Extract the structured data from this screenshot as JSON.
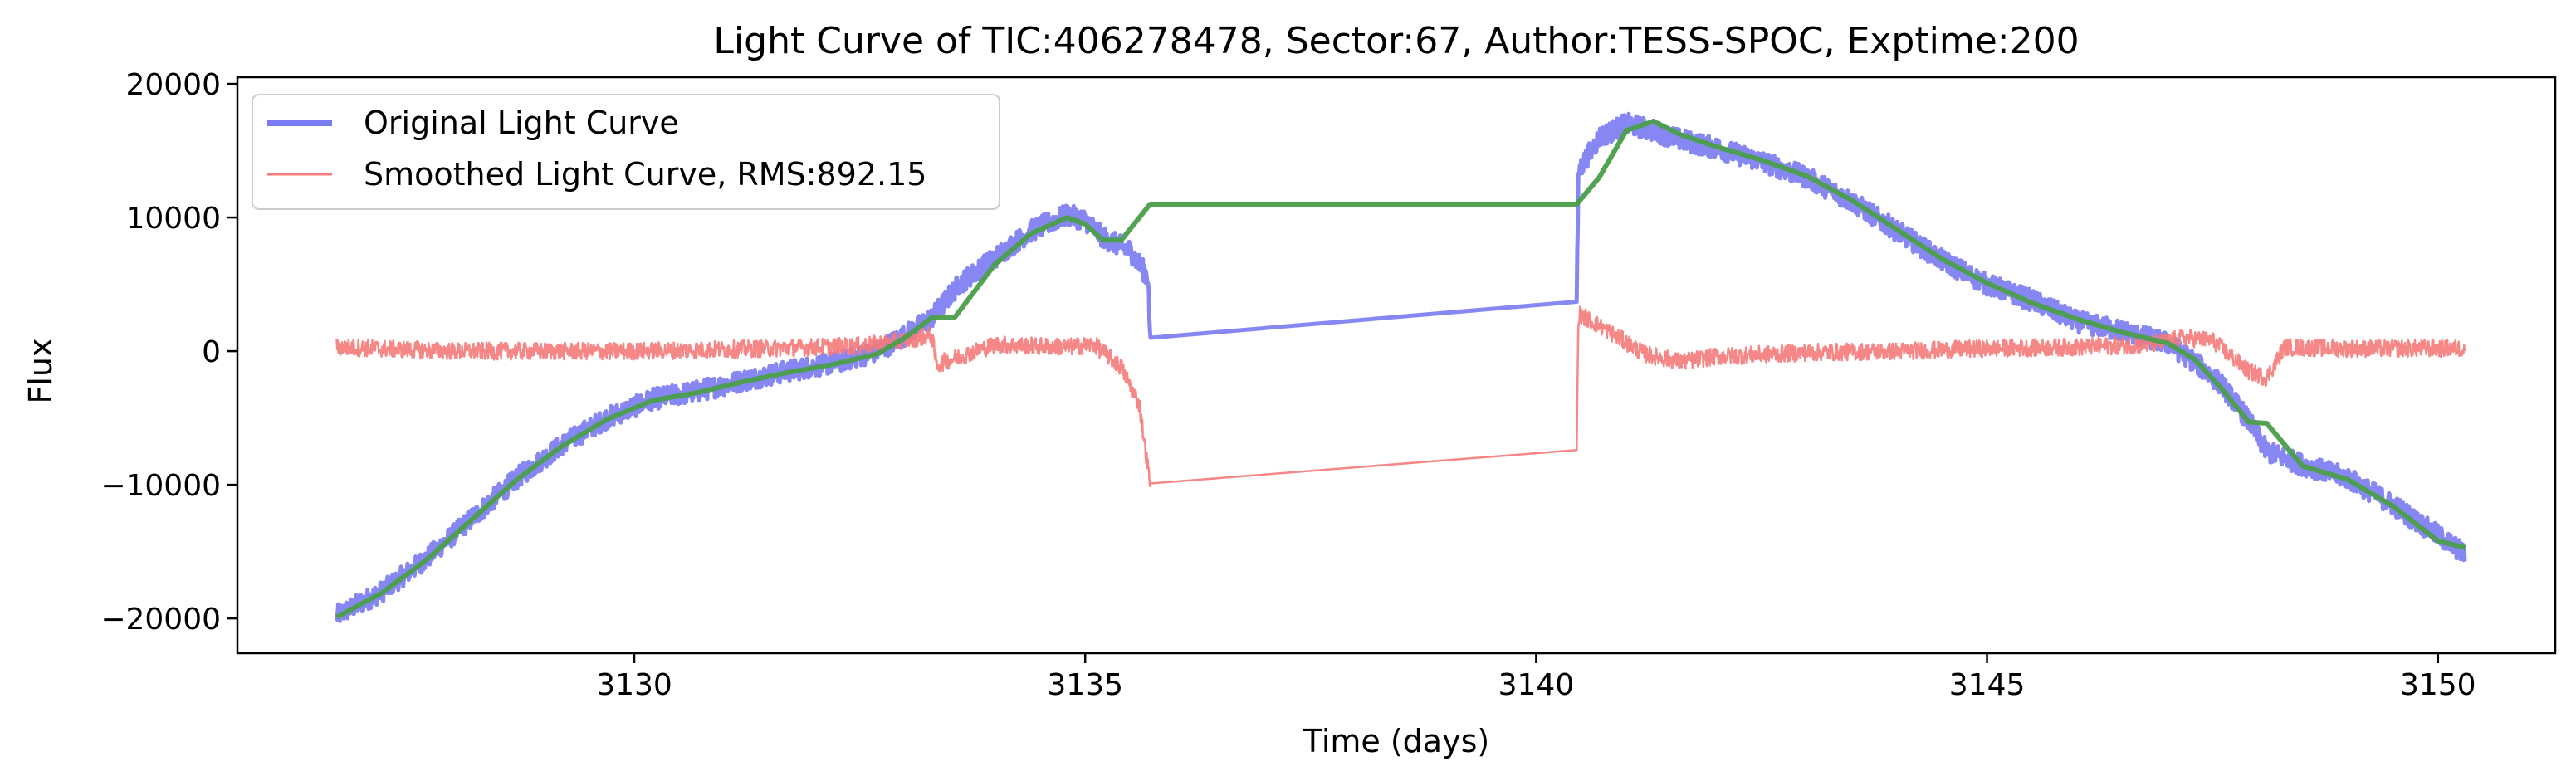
{
  "chart_data": {
    "type": "line",
    "title": "Light Curve of TIC:406278478, Sector:67, Author:TESS-SPOC, Exptime:200",
    "xlabel": "Time (days)",
    "ylabel": "Flux",
    "xlim": [
      3125.6,
      3151.3
    ],
    "ylim": [
      -22600,
      20500
    ],
    "x_ticks": [
      3130,
      3135,
      3140,
      3145,
      3150
    ],
    "x_tick_labels": [
      "3130",
      "3135",
      "3140",
      "3145",
      "3150"
    ],
    "y_ticks": [
      -20000,
      -10000,
      0,
      10000,
      20000
    ],
    "y_tick_labels": [
      "−20000",
      "−10000",
      "0",
      "10000",
      "20000"
    ],
    "grid": false,
    "legend_position": "upper-left",
    "series": [
      {
        "name": "Original Light Curve",
        "color": "#7a7af2",
        "style": "thick-noisy",
        "noise_amplitude": 800,
        "x": [
          3126.7,
          3127.2,
          3127.7,
          3128.2,
          3128.7,
          3129.2,
          3129.7,
          3130.2,
          3130.7,
          3131.2,
          3131.7,
          3132.2,
          3132.7,
          3133.0,
          3133.3,
          3133.6,
          3134.0,
          3134.4,
          3134.8,
          3135.0,
          3135.2,
          3135.5,
          3135.7,
          3135.72,
          3140.45,
          3140.47,
          3140.7,
          3141.0,
          3141.3,
          3141.6,
          3142.0,
          3142.5,
          3143.0,
          3143.5,
          3144.0,
          3144.5,
          3145.0,
          3145.5,
          3146.0,
          3146.5,
          3147.0,
          3147.3,
          3147.6,
          3147.9,
          3148.1,
          3148.5,
          3149.0,
          3149.5,
          3150.0,
          3150.3
        ],
        "y": [
          -19800,
          -18000,
          -15500,
          -12500,
          -9500,
          -7000,
          -5000,
          -3600,
          -3000,
          -2200,
          -1500,
          -900,
          0,
          1200,
          2500,
          5000,
          7000,
          9000,
          10200,
          9800,
          8500,
          7500,
          5500,
          1000,
          3700,
          13500,
          16000,
          17000,
          16500,
          15800,
          15200,
          14200,
          13000,
          11200,
          9000,
          6800,
          5000,
          3800,
          2200,
          1500,
          600,
          -800,
          -2500,
          -5200,
          -7500,
          -8500,
          -9500,
          -11500,
          -13800,
          -15200
        ]
      },
      {
        "name": "Smoothed Light Curve, RMS:892.15",
        "color": "#f57a7a",
        "style": "thin-noisy",
        "noise_amplitude": 650,
        "x": [
          3126.7,
          3128.0,
          3130.0,
          3131.5,
          3132.5,
          3133.0,
          3133.3,
          3133.35,
          3134.0,
          3134.8,
          3135.1,
          3135.4,
          3135.6,
          3135.72,
          3140.45,
          3140.47,
          3140.8,
          3141.2,
          3141.6,
          3142.0,
          3143.0,
          3144.0,
          3145.0,
          3146.0,
          3146.8,
          3147.2,
          3147.5,
          3147.9,
          3148.1,
          3148.3,
          3149.0,
          3150.0,
          3150.3
        ],
        "y": [
          300,
          0,
          0,
          200,
          400,
          800,
          1200,
          -1000,
          500,
          300,
          500,
          -1200,
          -4000,
          -9900,
          -7400,
          2800,
          1500,
          -200,
          -800,
          -400,
          -100,
          0,
          200,
          300,
          500,
          1000,
          800,
          -1500,
          -2000,
          300,
          200,
          200,
          200
        ]
      },
      {
        "name": "",
        "color": "#4a9e4a",
        "style": "trend",
        "x": [
          3126.7,
          3127.2,
          3127.7,
          3128.2,
          3128.7,
          3129.2,
          3129.7,
          3130.2,
          3130.7,
          3131.2,
          3131.7,
          3132.2,
          3132.7,
          3133.0,
          3133.3,
          3133.55,
          3134.0,
          3134.4,
          3134.8,
          3135.0,
          3135.2,
          3135.4,
          3135.72,
          3140.45,
          3140.7,
          3141.0,
          3141.3,
          3141.6,
          3142.0,
          3142.5,
          3143.0,
          3143.5,
          3144.0,
          3144.5,
          3145.0,
          3145.5,
          3146.0,
          3146.5,
          3147.0,
          3147.3,
          3147.6,
          3147.9,
          3148.1,
          3148.5,
          3149.0,
          3149.5,
          3150.0,
          3150.3
        ],
        "y": [
          -19900,
          -18100,
          -15600,
          -12600,
          -9600,
          -7100,
          -5100,
          -3700,
          -3100,
          -2300,
          -1600,
          -1000,
          -200,
          1000,
          2500,
          2500,
          6500,
          8800,
          10000,
          9500,
          8300,
          8300,
          11000,
          11000,
          13000,
          16500,
          17200,
          16200,
          15300,
          14300,
          13100,
          11300,
          9100,
          6900,
          5100,
          3600,
          2400,
          1400,
          600,
          -600,
          -2800,
          -5300,
          -5400,
          -8600,
          -9600,
          -11600,
          -14200,
          -14700
        ]
      }
    ],
    "legend": [
      {
        "label": "Original Light Curve",
        "color": "#7a7af2",
        "line_width": 8
      },
      {
        "label": "Smoothed Light Curve, RMS:892.15",
        "color": "#f57a7a",
        "line_width": 3
      }
    ]
  }
}
